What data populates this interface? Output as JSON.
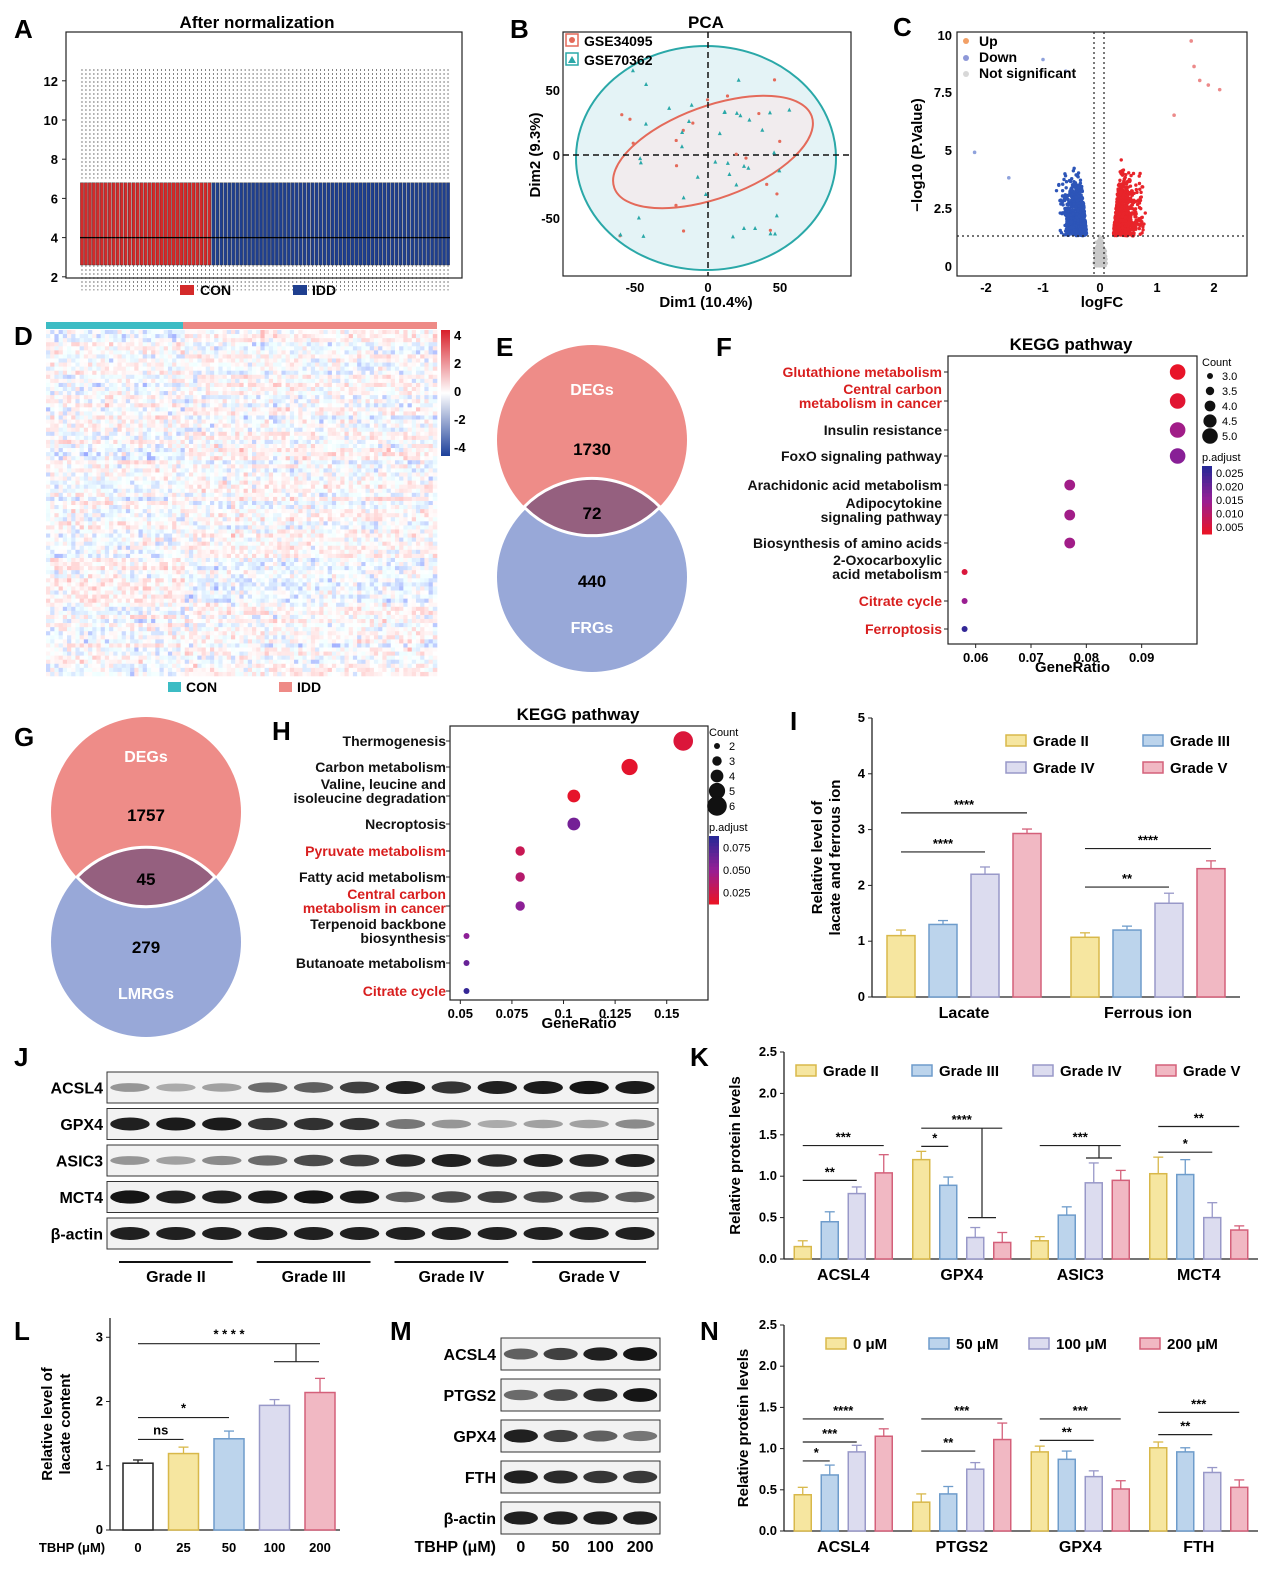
{
  "panels": [
    {
      "id": "A",
      "title": "After normalization",
      "legend": [
        "CON",
        "IDD"
      ],
      "yticks": [
        "2",
        "4",
        "6",
        "8",
        "10",
        "12"
      ]
    },
    {
      "id": "B",
      "title": "PCA",
      "legend": [
        "GSE34095",
        "GSE70362"
      ],
      "xlabel": "Dim1 (10.4%)",
      "ylabel": "Dim2 (9.3%)",
      "xticks": [
        "-50",
        "0",
        "50"
      ],
      "yticks": [
        "50",
        "0",
        "-50"
      ]
    },
    {
      "id": "C",
      "legend": [
        "Up",
        "Down",
        "Not significant"
      ],
      "xlabel": "logFC",
      "ylabel": "−log10 (P.Value)",
      "xticks": [
        "-2",
        "-1",
        "0",
        "1",
        "2"
      ],
      "yticks": [
        "0",
        "2.5",
        "5",
        "7.5",
        "10"
      ]
    },
    {
      "id": "D",
      "legend": [
        "CON",
        "IDD"
      ],
      "colorbar": [
        "4",
        "2",
        "0",
        "-2",
        "-4"
      ]
    },
    {
      "id": "E"
    },
    {
      "id": "F"
    },
    {
      "id": "G"
    },
    {
      "id": "H"
    },
    {
      "id": "I"
    },
    {
      "id": "J"
    },
    {
      "id": "K"
    },
    {
      "id": "L"
    },
    {
      "id": "M"
    },
    {
      "id": "N"
    }
  ],
  "colors": {
    "con_red": "#d42a2a",
    "idd_blue": "#1f3f8f",
    "up": "#e8242a",
    "down": "#2d55b8",
    "ns": "#c8c8c8",
    "grade2": "#f6e6a0",
    "grade3": "#bcd4ec",
    "grade4": "#dcdcef",
    "grade5": "#f1b8c3",
    "venn_top": "#ee8c88",
    "venn_bottom": "#98a8d8",
    "venn_mid": "#95607f"
  },
  "chart_data": [
    {
      "panel": "E",
      "type": "venn",
      "sets": [
        "DEGs",
        "FRGs"
      ],
      "values": {
        "only_a": "1730",
        "both": "72",
        "only_b": "440"
      }
    },
    {
      "panel": "G",
      "type": "venn",
      "sets": [
        "DEGs",
        "LMRGs"
      ],
      "values": {
        "only_a": "1757",
        "both": "45",
        "only_b": "279"
      }
    },
    {
      "panel": "F",
      "type": "scatter",
      "title": "KEGG pathway",
      "xlabel": "GeneRatio",
      "xlim": [
        0.055,
        0.1
      ],
      "xticks": [
        "0.06",
        "0.07",
        "0.08",
        "0.09"
      ],
      "count_legend_title": "Count",
      "count_legend": [
        "3.0",
        "3.5",
        "4.0",
        "4.5",
        "5.0"
      ],
      "padj_legend_title": "p.adjust",
      "padj_legend": [
        "0.025",
        "0.020",
        "0.015",
        "0.010",
        "0.005"
      ],
      "points": [
        {
          "label": "Glutathione metabolism",
          "x": 0.0965,
          "count": 5,
          "padj": 0.003,
          "highlight": true
        },
        {
          "label": "Central carbon\nmetabolism in cancer",
          "x": 0.0965,
          "count": 5,
          "padj": 0.004,
          "highlight": true
        },
        {
          "label": "Insulin resistance",
          "x": 0.0965,
          "count": 5,
          "padj": 0.013,
          "highlight": false
        },
        {
          "label": "FoxO signaling pathway",
          "x": 0.0965,
          "count": 5,
          "padj": 0.016,
          "highlight": false
        },
        {
          "label": "Arachidonic acid metabolism",
          "x": 0.077,
          "count": 4,
          "padj": 0.013,
          "highlight": false
        },
        {
          "label": "Adipocytokine\nsignaling pathway",
          "x": 0.077,
          "count": 4,
          "padj": 0.013,
          "highlight": false
        },
        {
          "label": "Biosynthesis of amino acids",
          "x": 0.077,
          "count": 4,
          "padj": 0.013,
          "highlight": false
        },
        {
          "label": "2-Oxocarboxylic\nacid metabolism",
          "x": 0.058,
          "count": 3,
          "padj": 0.005,
          "highlight": false
        },
        {
          "label": "Citrate cycle",
          "x": 0.058,
          "count": 3,
          "padj": 0.014,
          "highlight": true
        },
        {
          "label": "Ferroptosis",
          "x": 0.058,
          "count": 3,
          "padj": 0.025,
          "highlight": true
        }
      ]
    },
    {
      "panel": "H",
      "type": "scatter",
      "title": "KEGG pathway",
      "xlabel": "GeneRatio",
      "xlim": [
        0.045,
        0.17
      ],
      "xticks": [
        "0.05",
        "0.075",
        "0.1",
        "0.125",
        "0.15"
      ],
      "count_legend_title": "Count",
      "count_legend": [
        "2",
        "3",
        "4",
        "5",
        "6"
      ],
      "padj_legend_title": "p.adjust",
      "padj_legend": [
        "0.075",
        "0.050",
        "0.025"
      ],
      "points": [
        {
          "label": "Thermogenesis",
          "x": 0.158,
          "count": 6,
          "padj": 0.01,
          "highlight": false
        },
        {
          "label": "Carbon metabolism",
          "x": 0.132,
          "count": 5,
          "padj": 0.005,
          "highlight": false
        },
        {
          "label": "Valine, leucine and\nisoleucine degradation",
          "x": 0.105,
          "count": 4,
          "padj": 0.004,
          "highlight": false
        },
        {
          "label": "Necroptosis",
          "x": 0.105,
          "count": 4,
          "padj": 0.06,
          "highlight": false
        },
        {
          "label": "Pyruvate metabolism",
          "x": 0.079,
          "count": 3,
          "padj": 0.02,
          "highlight": true
        },
        {
          "label": "Fatty acid metabolism",
          "x": 0.079,
          "count": 3,
          "padj": 0.03,
          "highlight": false
        },
        {
          "label": "Central carbon\nmetabolism in cancer",
          "x": 0.079,
          "count": 3,
          "padj": 0.05,
          "highlight": true
        },
        {
          "label": "Terpenoid backbone\nbiosynthesis",
          "x": 0.053,
          "count": 2,
          "padj": 0.05,
          "highlight": false
        },
        {
          "label": "Butanoate metabolism",
          "x": 0.053,
          "count": 2,
          "padj": 0.065,
          "highlight": false
        },
        {
          "label": "Citrate cycle",
          "x": 0.053,
          "count": 2,
          "padj": 0.085,
          "highlight": true
        }
      ]
    },
    {
      "panel": "I",
      "type": "bar",
      "ylabel": "Relative level of\nlacate and ferrous ion",
      "ylim": [
        0,
        5
      ],
      "yticks": [
        "0",
        "1",
        "2",
        "3",
        "4",
        "5"
      ],
      "categories": [
        "Lacate",
        "Ferrous ion"
      ],
      "series": [
        {
          "name": "Grade II",
          "values": [
            1.1,
            1.07
          ],
          "err": [
            0.1,
            0.08
          ]
        },
        {
          "name": "Grade III",
          "values": [
            1.3,
            1.2
          ],
          "err": [
            0.07,
            0.07
          ]
        },
        {
          "name": "Grade IV",
          "values": [
            2.2,
            1.68
          ],
          "err": [
            0.13,
            0.18
          ]
        },
        {
          "name": "Grade V",
          "values": [
            2.93,
            2.3
          ],
          "err": [
            0.08,
            0.14
          ]
        }
      ],
      "sig": [
        {
          "cat": 0,
          "from": 0,
          "to": 2,
          "label": "****",
          "y": 2.6
        },
        {
          "cat": 0,
          "from": 0,
          "to": 3,
          "label": "****",
          "y": 3.3
        },
        {
          "cat": 1,
          "from": 0,
          "to": 2,
          "label": "**",
          "y": 1.97
        },
        {
          "cat": 1,
          "from": 0,
          "to": 3,
          "label": "****",
          "y": 2.66
        }
      ]
    },
    {
      "panel": "K",
      "type": "bar",
      "ylabel": "Relative protein levels",
      "ylim": [
        0,
        2.5
      ],
      "yticks": [
        "0.0",
        "0.5",
        "1.0",
        "1.5",
        "2.0",
        "2.5"
      ],
      "categories": [
        "ACSL4",
        "GPX4",
        "ASIC3",
        "MCT4"
      ],
      "series": [
        {
          "name": "Grade II",
          "values": [
            0.15,
            1.2,
            0.22,
            1.03
          ],
          "err": [
            0.07,
            0.1,
            0.05,
            0.2
          ]
        },
        {
          "name": "Grade III",
          "values": [
            0.45,
            0.89,
            0.53,
            1.02
          ],
          "err": [
            0.12,
            0.1,
            0.1,
            0.18
          ]
        },
        {
          "name": "Grade IV",
          "values": [
            0.79,
            0.26,
            0.92,
            0.5
          ],
          "err": [
            0.08,
            0.12,
            0.24,
            0.18
          ]
        },
        {
          "name": "Grade V",
          "values": [
            1.04,
            0.2,
            0.95,
            0.35
          ],
          "err": [
            0.22,
            0.12,
            0.12,
            0.05
          ]
        }
      ],
      "sig": [
        {
          "cat": 0,
          "from": 0,
          "to": 2,
          "label": "**",
          "y": 0.95
        },
        {
          "cat": 0,
          "from": 0,
          "to": 3,
          "label": "***",
          "y": 1.37
        },
        {
          "cat": 1,
          "from": 0,
          "to": 1,
          "label": "*",
          "y": 1.36
        },
        {
          "cat": 1,
          "from": 0,
          "to": 3,
          "label": "****",
          "y": 1.58
        },
        {
          "cat": 2,
          "from": 0,
          "to": 3,
          "label": "***",
          "y": 1.37
        },
        {
          "cat": 3,
          "from": 0,
          "to": 2,
          "label": "*",
          "y": 1.29
        },
        {
          "cat": 3,
          "from": 0,
          "to": 3,
          "label": "**",
          "y": 1.6
        }
      ]
    },
    {
      "panel": "L",
      "type": "bar",
      "ylabel": "Relative level of\nlacate content",
      "ylim": [
        0,
        3.3
      ],
      "yticks": [
        "0",
        "1",
        "2",
        "3"
      ],
      "xlabel": "TBHP (μM)",
      "categories": [
        "0",
        "25",
        "50",
        "100",
        "200"
      ],
      "values": [
        1.04,
        1.19,
        1.42,
        1.94,
        2.14
      ],
      "err": [
        0.05,
        0.1,
        0.12,
        0.09,
        0.22
      ],
      "sig": [
        {
          "from": 0,
          "to": 1,
          "label": "ns",
          "y": 1.41
        },
        {
          "from": 0,
          "to": 2,
          "label": "*",
          "y": 1.75
        },
        {
          "from": 0,
          "to": 4,
          "label": "* * * *",
          "y": 2.9
        }
      ]
    },
    {
      "panel": "N",
      "type": "bar",
      "ylabel": "Relative protein levels",
      "ylim": [
        0,
        2.5
      ],
      "yticks": [
        "0.0",
        "0.5",
        "1.0",
        "1.5",
        "2.0",
        "2.5"
      ],
      "categories": [
        "ACSL4",
        "PTGS2",
        "GPX4",
        "FTH"
      ],
      "series": [
        {
          "name": "0 μM",
          "values": [
            0.44,
            0.35,
            0.96,
            1.01
          ],
          "err": [
            0.09,
            0.1,
            0.07,
            0.07
          ]
        },
        {
          "name": "50 μM",
          "values": [
            0.68,
            0.45,
            0.87,
            0.96
          ],
          "err": [
            0.12,
            0.09,
            0.1,
            0.05
          ]
        },
        {
          "name": "100 μM",
          "values": [
            0.96,
            0.75,
            0.66,
            0.71
          ],
          "err": [
            0.08,
            0.08,
            0.07,
            0.06
          ]
        },
        {
          "name": "200 μM",
          "values": [
            1.15,
            1.11,
            0.51,
            0.53
          ],
          "err": [
            0.09,
            0.2,
            0.1,
            0.09
          ]
        }
      ],
      "sig": [
        {
          "cat": 0,
          "from": 0,
          "to": 1,
          "label": "*",
          "y": 0.85
        },
        {
          "cat": 0,
          "from": 0,
          "to": 2,
          "label": "***",
          "y": 1.08
        },
        {
          "cat": 0,
          "from": 0,
          "to": 3,
          "label": "****",
          "y": 1.36
        },
        {
          "cat": 1,
          "from": 0,
          "to": 2,
          "label": "**",
          "y": 0.97
        },
        {
          "cat": 1,
          "from": 0,
          "to": 3,
          "label": "***",
          "y": 1.36
        },
        {
          "cat": 2,
          "from": 0,
          "to": 2,
          "label": "**",
          "y": 1.1
        },
        {
          "cat": 2,
          "from": 0,
          "to": 3,
          "label": "***",
          "y": 1.36
        },
        {
          "cat": 3,
          "from": 0,
          "to": 2,
          "label": "**",
          "y": 1.17
        },
        {
          "cat": 3,
          "from": 0,
          "to": 3,
          "label": "***",
          "y": 1.44
        }
      ]
    }
  ],
  "westernJ": {
    "rows": [
      "ACSL4",
      "GPX4",
      "ASIC3",
      "MCT4",
      "β-actin"
    ],
    "groups": [
      "Grade II",
      "Grade III",
      "Grade IV",
      "Grade V"
    ],
    "intensity": [
      [
        0.35,
        0.25,
        0.3,
        0.55,
        0.6,
        0.75,
        0.9,
        0.8,
        0.9,
        0.92,
        0.95,
        0.92
      ],
      [
        0.9,
        0.92,
        0.92,
        0.8,
        0.82,
        0.82,
        0.5,
        0.35,
        0.25,
        0.3,
        0.3,
        0.4
      ],
      [
        0.35,
        0.3,
        0.4,
        0.55,
        0.7,
        0.75,
        0.85,
        0.9,
        0.85,
        0.9,
        0.88,
        0.9
      ],
      [
        0.95,
        0.9,
        0.9,
        0.92,
        0.95,
        0.92,
        0.6,
        0.7,
        0.75,
        0.7,
        0.65,
        0.6
      ],
      [
        0.9,
        0.9,
        0.9,
        0.9,
        0.9,
        0.9,
        0.9,
        0.9,
        0.9,
        0.9,
        0.9,
        0.9
      ]
    ]
  },
  "westernM": {
    "rows": [
      "ACSL4",
      "PTGS2",
      "GPX4",
      "FTH",
      "β-actin"
    ],
    "xlabel": "TBHP (μM)",
    "lanes": [
      "0",
      "50",
      "100",
      "200"
    ],
    "intensity": [
      [
        0.6,
        0.75,
        0.9,
        0.95
      ],
      [
        0.55,
        0.7,
        0.85,
        0.95
      ],
      [
        0.9,
        0.75,
        0.6,
        0.5
      ],
      [
        0.9,
        0.85,
        0.8,
        0.78
      ],
      [
        0.9,
        0.9,
        0.9,
        0.9
      ]
    ]
  }
}
